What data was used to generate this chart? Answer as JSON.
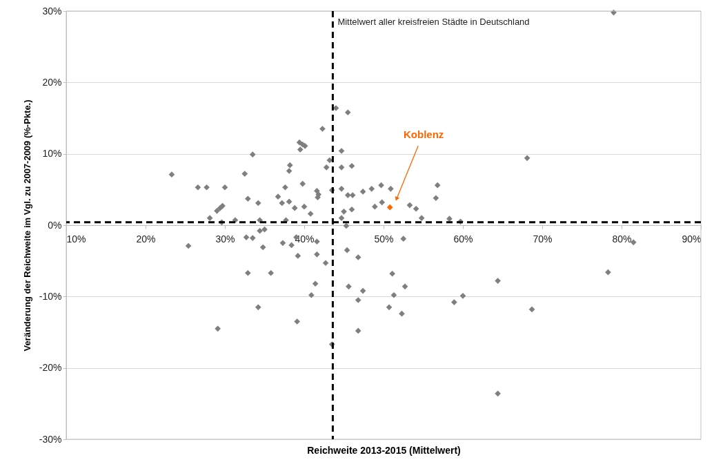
{
  "chart_data": {
    "type": "scatter",
    "xlabel": "Reichweite 2013-2015 (Mittelwert)",
    "ylabel": "Veränderung der Reichweite im Vgl. zu 2007-2009 (%-Pkte.)",
    "xlim": [
      10,
      90
    ],
    "xticks": [
      {
        "value": 10,
        "label": "10%"
      },
      {
        "value": 20,
        "label": "20%"
      },
      {
        "value": 30,
        "label": "30%"
      },
      {
        "value": 40,
        "label": "40%"
      },
      {
        "value": 50,
        "label": "50%"
      },
      {
        "value": 60,
        "label": "60%"
      },
      {
        "value": 70,
        "label": "70%"
      },
      {
        "value": 80,
        "label": "80%"
      },
      {
        "value": 90,
        "label": "90%"
      }
    ],
    "ylim": [
      -30,
      30
    ],
    "yticks": [
      {
        "value": -30,
        "label": "-30%"
      },
      {
        "value": -20,
        "label": "-20%"
      },
      {
        "value": -10,
        "label": "-10%"
      },
      {
        "value": 0,
        "label": "0%"
      },
      {
        "value": 10,
        "label": "10%"
      },
      {
        "value": 20,
        "label": "20%"
      },
      {
        "value": 30,
        "label": "30%"
      }
    ],
    "grid": "y",
    "marker": "diamond",
    "series": [
      {
        "color": "#7f7f7f",
        "x": [
          23.3,
          25.4,
          26.6,
          27.7,
          28.1,
          29.0,
          29.4,
          29.7,
          29.6,
          30.0,
          29.1,
          31.3,
          32.5,
          32.9,
          33.5,
          32.7,
          33.5,
          34.2,
          34.4,
          34.4,
          35.0,
          34.8,
          32.9,
          35.8,
          34.2,
          36.7,
          37.6,
          37.7,
          37.2,
          38.1,
          38.8,
          38.2,
          38.1,
          37.3,
          38.4,
          39.0,
          39.2,
          39.8,
          40.0,
          40.8,
          39.4,
          39.8,
          40.1,
          39.5,
          39.1,
          40.9,
          41.4,
          41.6,
          41.6,
          41.8,
          41.7,
          41.6,
          42.7,
          42.3,
          42.8,
          43.2,
          43.5,
          43.5,
          44.0,
          45.5,
          44.7,
          44.7,
          46.0,
          44.7,
          45.5,
          46.1,
          47.4,
          48.5,
          49.7,
          50.9,
          48.9,
          49.8,
          53.3,
          54.1,
          54.8,
          56.8,
          56.6,
          58.3,
          59.7,
          45.0,
          46.0,
          44.7,
          45.3,
          52.5,
          45.4,
          46.8,
          51.1,
          45.6,
          47.4,
          52.7,
          46.8,
          51.3,
          50.7,
          52.3,
          58.9,
          60.0,
          46.8,
          79.0,
          68.1,
          81.5,
          78.3,
          64.4,
          68.7,
          64.4
        ],
        "values": [
          7.1,
          -2.9,
          5.3,
          5.3,
          1.0,
          2.0,
          2.4,
          2.7,
          0.4,
          5.3,
          -14.5,
          0.7,
          7.2,
          3.7,
          9.9,
          -1.7,
          -1.8,
          3.1,
          0.7,
          -0.8,
          -0.6,
          -3.1,
          -6.7,
          -6.7,
          -11.5,
          4.0,
          5.3,
          0.7,
          3.1,
          3.3,
          2.4,
          8.4,
          7.6,
          -2.5,
          -2.8,
          -1.7,
          -4.3,
          5.8,
          2.6,
          1.6,
          11.6,
          11.3,
          11.1,
          10.6,
          -13.5,
          -9.8,
          -8.2,
          -2.3,
          4.8,
          4.3,
          3.9,
          -4.1,
          -5.3,
          13.5,
          8.1,
          9.1,
          4.9,
          -16.7,
          16.4,
          15.8,
          10.4,
          8.1,
          8.3,
          5.1,
          4.2,
          4.2,
          4.7,
          5.1,
          5.6,
          5.1,
          2.6,
          3.2,
          2.8,
          2.3,
          1.0,
          5.6,
          3.8,
          0.9,
          0.5,
          1.9,
          2.2,
          1.0,
          -0.1,
          -1.9,
          -3.5,
          -4.5,
          -6.8,
          -8.6,
          -9.2,
          -8.6,
          -10.5,
          -9.8,
          -11.5,
          -12.4,
          -10.8,
          -9.9,
          -14.8,
          29.8,
          9.4,
          -2.4,
          -6.6,
          -7.8,
          -11.8,
          -23.6
        ]
      },
      {
        "color": "#ff6600",
        "x": [
          50.8
        ],
        "values": [
          2.5
        ]
      }
    ],
    "ref_lines": [
      {
        "axis": "x",
        "value": 43.6,
        "label": "Mittelwert aller kreisfreien Städte in Deutschland",
        "color": "#000000",
        "line_style": "dashed"
      },
      {
        "axis": "y",
        "value": 0.4,
        "color": "#000000",
        "line_style": "dashed"
      }
    ],
    "annotations": [
      "Koblenz"
    ]
  }
}
